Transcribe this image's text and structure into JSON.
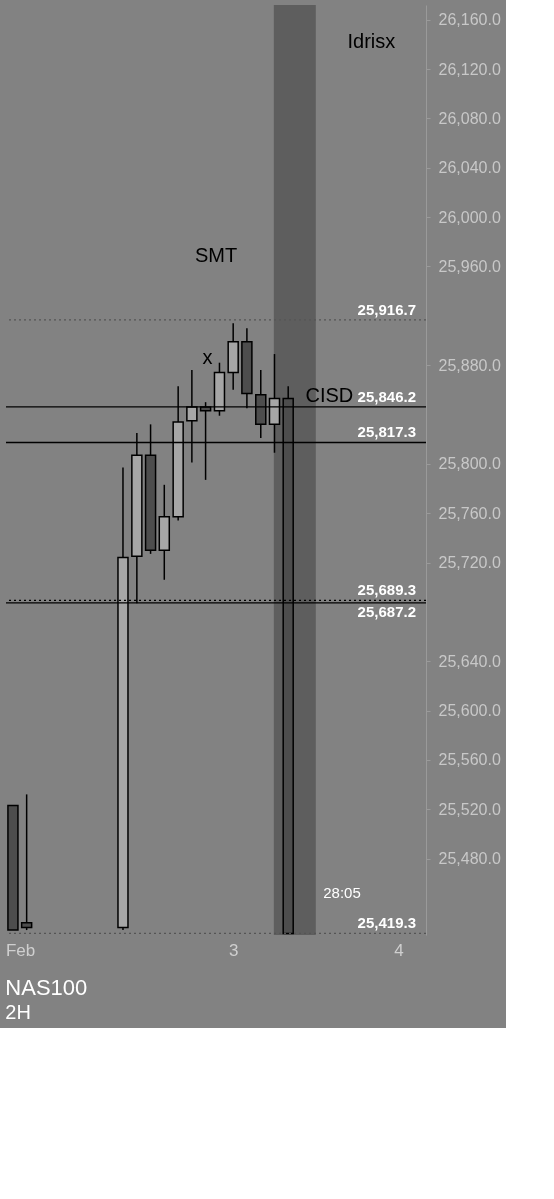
{
  "chart_data": {
    "type": "candlestick",
    "title": "NAS100",
    "subtitle": "2H",
    "x": [
      1.667,
      1.75,
      2.333,
      2.417,
      2.5,
      2.583,
      2.667,
      2.75,
      2.833,
      2.917,
      3,
      3.083,
      3.167,
      3.25,
      3.333
    ],
    "ohlc": [
      [
        25523,
        25523,
        25422,
        25422
      ],
      [
        25428,
        25532,
        25422,
        25424
      ],
      [
        25424,
        25797,
        25422,
        25724
      ],
      [
        25725,
        25825,
        25687,
        25807
      ],
      [
        25807,
        25832,
        25727,
        25730
      ],
      [
        25730,
        25783,
        25706,
        25757
      ],
      [
        25757,
        25863,
        25754,
        25834
      ],
      [
        25835,
        25876,
        25801,
        25846
      ],
      [
        25846,
        25850,
        25787,
        25843
      ],
      [
        25843,
        25882,
        25839,
        25874
      ],
      [
        25874,
        25914,
        25860,
        25899
      ],
      [
        25899,
        25910,
        25845,
        25857
      ],
      [
        25856,
        25876,
        25821,
        25832
      ],
      [
        25832,
        25889,
        25809,
        25853
      ],
      [
        25853,
        25863,
        25419.3,
        25419.3
      ]
    ],
    "colors": [
      "#4d4d4d",
      "#4d4d4d",
      "#a6a6a6",
      "#a6a6a6",
      "#4d4d4d",
      "#a6a6a6",
      "#a6a6a6",
      "#a6a6a6",
      "#4d4d4d",
      "#a6a6a6",
      "#a6a6a6",
      "#4d4d4d",
      "#4d4d4d",
      "#a6a6a6",
      "#4d4d4d"
    ],
    "xlim": [
      1.625,
      4.167
    ],
    "xticks": [
      {
        "value": 1.71,
        "label": "Feb"
      },
      3,
      4
    ],
    "ylim": [
      25418,
      26172
    ],
    "yticks": [
      {
        "value": 25480,
        "label": "25,480.0"
      },
      {
        "value": 25520,
        "label": "25,520.0"
      },
      {
        "value": 25560,
        "label": "25,560.0"
      },
      {
        "value": 25600,
        "label": "25,600.0"
      },
      {
        "value": 25640,
        "label": "25,640.0"
      },
      {
        "value": 25720,
        "label": "25,720.0"
      },
      {
        "value": 25760,
        "label": "25,760.0"
      },
      {
        "value": 25800,
        "label": "25,800.0"
      },
      {
        "value": 25880,
        "label": "25,880.0"
      },
      {
        "value": 25960,
        "label": "25,960.0"
      },
      {
        "value": 26000,
        "label": "26,000.0"
      },
      {
        "value": 26040,
        "label": "26,040.0"
      },
      {
        "value": 26080,
        "label": "26,080.0"
      },
      {
        "value": 26120,
        "label": "26,120.0"
      },
      {
        "value": 26160,
        "label": "26,160.0"
      }
    ],
    "grid": false,
    "ref_lines": [
      {
        "axis": "y",
        "value": 25916.7,
        "label": "25,916.7",
        "color": "#555555",
        "line_style": "dotted"
      },
      {
        "axis": "y",
        "value": 25846.2,
        "label": "25,846.2",
        "color": "#000000",
        "line_style": "solid"
      },
      {
        "axis": "y",
        "value": 25817.3,
        "label": "25,817.3",
        "color": "#000000",
        "line_style": "solid"
      },
      {
        "axis": "y",
        "value": 25689.3,
        "label": "25,689.3",
        "color": "#000000",
        "line_style": "dotted"
      },
      {
        "axis": "y",
        "value": 25687.2,
        "label": "25,687.2",
        "color": "#000000",
        "line_style": "solid"
      },
      {
        "axis": "y",
        "value": 25419.3,
        "label": "25,419.3",
        "color": "#555555",
        "line_style": "dotted"
      }
    ],
    "bands": [
      {
        "axis": "x",
        "from": 3.246,
        "to": 3.5,
        "color": "#5e5e5e"
      }
    ],
    "annotations": [
      "SMT",
      "x",
      "CISD",
      "Idrisx",
      "28:05"
    ]
  }
}
